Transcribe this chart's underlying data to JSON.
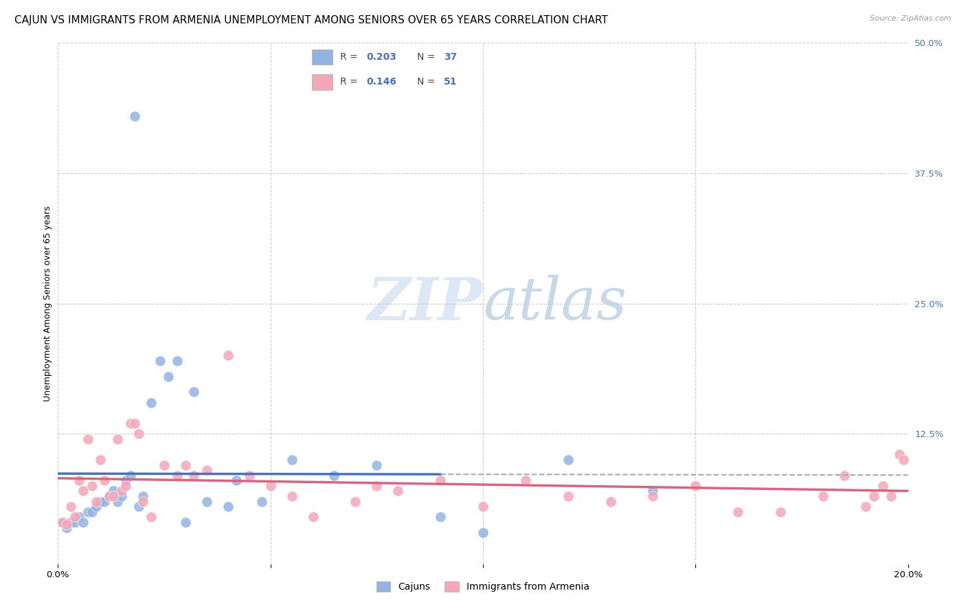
{
  "title": "CAJUN VS IMMIGRANTS FROM ARMENIA UNEMPLOYMENT AMONG SENIORS OVER 65 YEARS CORRELATION CHART",
  "source": "Source: ZipAtlas.com",
  "ylabel_left": "Unemployment Among Seniors over 65 years",
  "x_min": 0.0,
  "x_max": 0.2,
  "y_min": 0.0,
  "y_max": 0.5,
  "x_ticks": [
    0.0,
    0.05,
    0.1,
    0.15,
    0.2
  ],
  "y_ticks_right": [
    0.0,
    0.125,
    0.25,
    0.375,
    0.5
  ],
  "y_tick_labels_right": [
    "",
    "12.5%",
    "25.0%",
    "37.5%",
    "50.0%"
  ],
  "cajun_R": 0.203,
  "cajun_N": 37,
  "armenia_R": 0.146,
  "armenia_N": 51,
  "cajun_color": "#92b4e3",
  "armenia_color": "#f4a7b9",
  "cajun_trend_color": "#4472c4",
  "armenia_trend_color": "#e06080",
  "background_color": "#ffffff",
  "watermark_color": "#dce8f5",
  "cajun_scatter_x": [
    0.001,
    0.002,
    0.003,
    0.004,
    0.005,
    0.006,
    0.007,
    0.008,
    0.009,
    0.01,
    0.011,
    0.012,
    0.013,
    0.014,
    0.015,
    0.016,
    0.017,
    0.018,
    0.019,
    0.02,
    0.022,
    0.024,
    0.026,
    0.028,
    0.03,
    0.032,
    0.035,
    0.04,
    0.042,
    0.048,
    0.055,
    0.065,
    0.075,
    0.09,
    0.1,
    0.12,
    0.14
  ],
  "cajun_scatter_y": [
    0.04,
    0.035,
    0.04,
    0.04,
    0.045,
    0.04,
    0.05,
    0.05,
    0.055,
    0.06,
    0.06,
    0.065,
    0.07,
    0.06,
    0.065,
    0.08,
    0.085,
    0.43,
    0.055,
    0.065,
    0.155,
    0.195,
    0.18,
    0.195,
    0.04,
    0.165,
    0.06,
    0.055,
    0.08,
    0.06,
    0.1,
    0.085,
    0.095,
    0.045,
    0.03,
    0.1,
    0.07
  ],
  "armenia_scatter_x": [
    0.001,
    0.002,
    0.003,
    0.004,
    0.005,
    0.006,
    0.007,
    0.008,
    0.009,
    0.01,
    0.011,
    0.012,
    0.013,
    0.014,
    0.015,
    0.016,
    0.017,
    0.018,
    0.019,
    0.02,
    0.022,
    0.025,
    0.028,
    0.03,
    0.032,
    0.035,
    0.04,
    0.045,
    0.05,
    0.055,
    0.06,
    0.07,
    0.075,
    0.08,
    0.09,
    0.1,
    0.11,
    0.12,
    0.13,
    0.14,
    0.15,
    0.16,
    0.17,
    0.18,
    0.185,
    0.19,
    0.192,
    0.194,
    0.196,
    0.198,
    0.199
  ],
  "armenia_scatter_y": [
    0.04,
    0.038,
    0.055,
    0.045,
    0.08,
    0.07,
    0.12,
    0.075,
    0.06,
    0.1,
    0.08,
    0.065,
    0.065,
    0.12,
    0.07,
    0.075,
    0.135,
    0.135,
    0.125,
    0.06,
    0.045,
    0.095,
    0.085,
    0.095,
    0.085,
    0.09,
    0.2,
    0.085,
    0.075,
    0.065,
    0.045,
    0.06,
    0.075,
    0.07,
    0.08,
    0.055,
    0.08,
    0.065,
    0.06,
    0.065,
    0.075,
    0.05,
    0.05,
    0.065,
    0.085,
    0.055,
    0.065,
    0.075,
    0.065,
    0.105,
    0.1
  ],
  "title_fontsize": 11,
  "axis_label_fontsize": 9,
  "tick_fontsize": 9.5
}
